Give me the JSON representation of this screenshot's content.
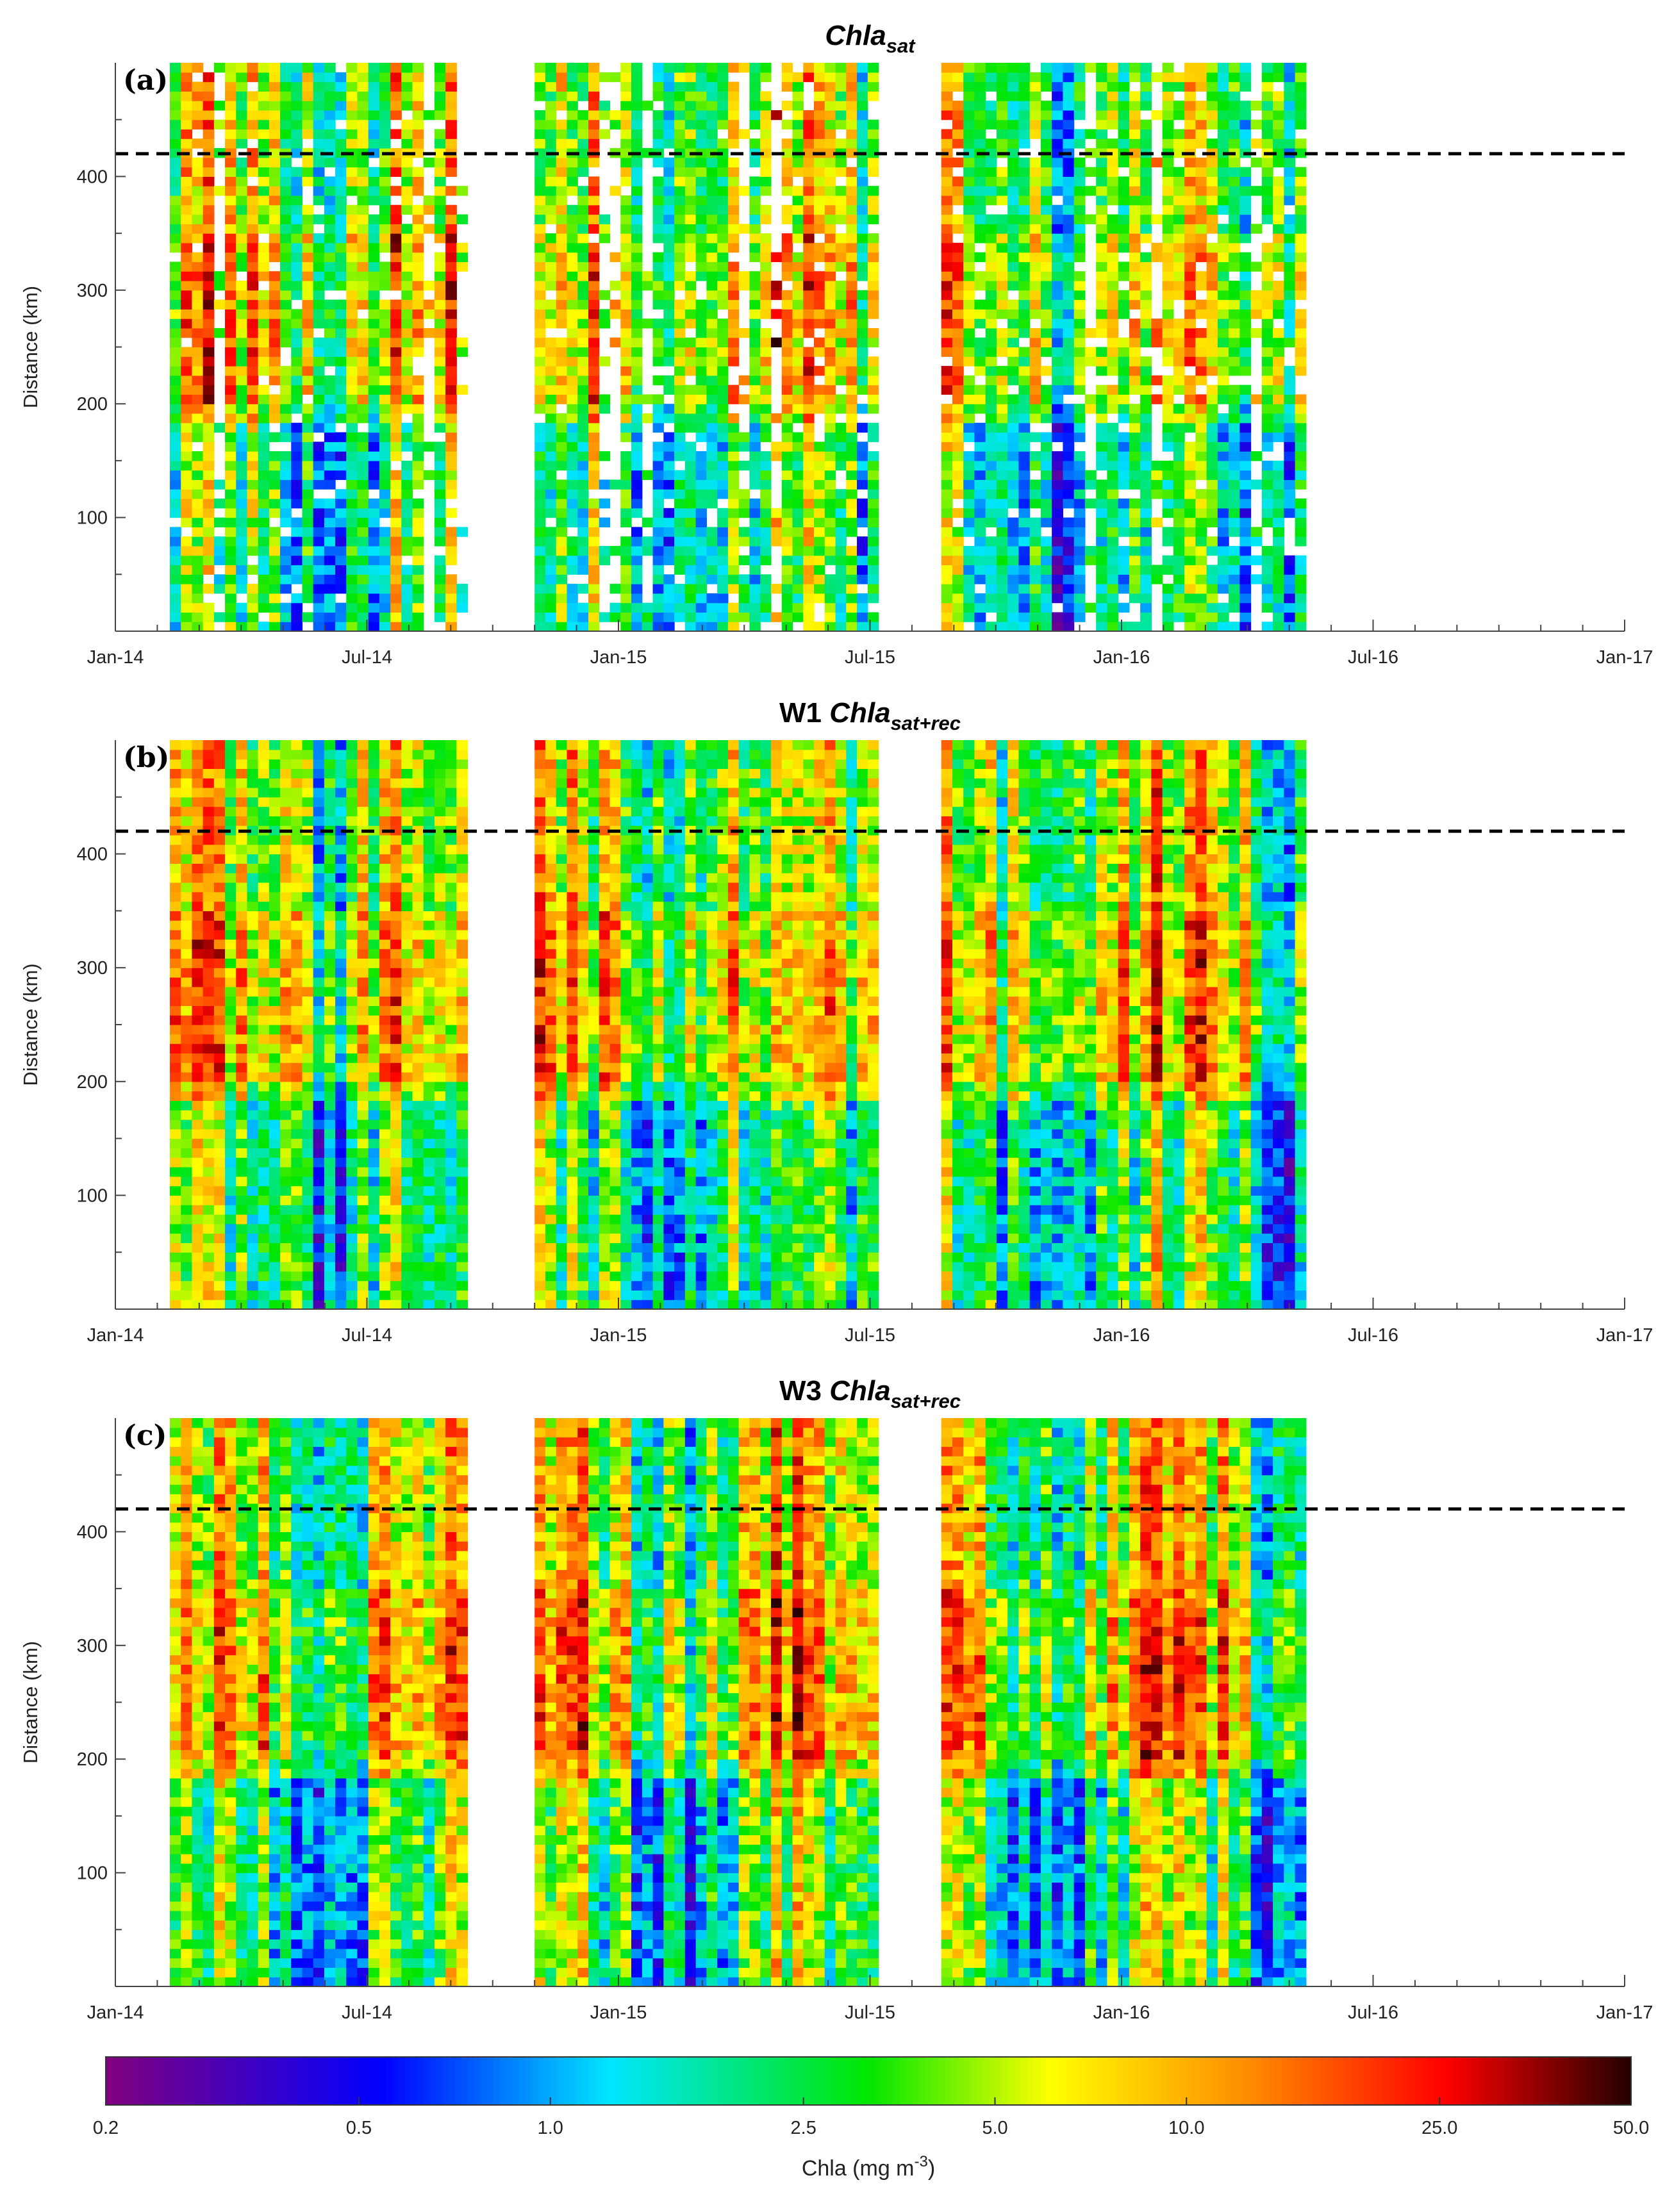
{
  "chart_data": [
    {
      "type": "heatmap",
      "panel_label": "(a)",
      "title_main": "Chla",
      "title_sub": "sat",
      "title_prefix": "",
      "ylabel": "Distance (km)",
      "xlabel": "",
      "x_ticks": [
        "Jan-14",
        "Jul-14",
        "Jan-15",
        "Jul-15",
        "Jan-16",
        "Jul-16",
        "Jan-17"
      ],
      "y_ticks": [
        100,
        200,
        300,
        400
      ],
      "ylim": [
        0,
        500
      ],
      "xlim_months": [
        0,
        36
      ],
      "boundary_km": 420,
      "coverage_months": [
        [
          1.3,
          8.4
        ],
        [
          10.0,
          18.2
        ],
        [
          19.7,
          28.4
        ]
      ],
      "gaps": true
    },
    {
      "type": "heatmap",
      "panel_label": "(b)",
      "title_main": "Chla",
      "title_sub": "sat+rec",
      "title_prefix": "W1",
      "ylabel": "Distance (km)",
      "xlabel": "",
      "x_ticks": [
        "Jan-14",
        "Jul-14",
        "Jan-15",
        "Jul-15",
        "Jan-16",
        "Jul-16",
        "Jan-17"
      ],
      "y_ticks": [
        100,
        200,
        300,
        400
      ],
      "ylim": [
        0,
        500
      ],
      "xlim_months": [
        0,
        36
      ],
      "boundary_km": 420,
      "coverage_months": [
        [
          1.3,
          8.4
        ],
        [
          10.0,
          18.2
        ],
        [
          19.7,
          28.4
        ]
      ],
      "gaps": false
    },
    {
      "type": "heatmap",
      "panel_label": "(c)",
      "title_main": "Chla",
      "title_sub": "sat+rec",
      "title_prefix": "W3",
      "ylabel": "Distance (km)",
      "xlabel": "",
      "x_ticks": [
        "Jan-14",
        "Jul-14",
        "Jan-15",
        "Jul-15",
        "Jan-16",
        "Jul-16",
        "Jan-17"
      ],
      "y_ticks": [
        100,
        200,
        300,
        400
      ],
      "ylim": [
        0,
        500
      ],
      "xlim_months": [
        0,
        36
      ],
      "boundary_km": 420,
      "coverage_months": [
        [
          1.3,
          8.4
        ],
        [
          10.0,
          18.2
        ],
        [
          19.7,
          28.4
        ]
      ],
      "gaps": false
    }
  ],
  "colorbar": {
    "label": "Chla (mg m",
    "label_exp": "-3",
    "label_end": ")",
    "ticks": [
      "0.2",
      "0.5",
      "1.0",
      "2.5",
      "5.0",
      "10.0",
      "25.0",
      "50.0"
    ],
    "tick_values": [
      0.2,
      0.5,
      1.0,
      2.5,
      5.0,
      10.0,
      25.0,
      50.0
    ],
    "scale": "log",
    "range": [
      0.2,
      50.0
    ],
    "colors": [
      "#880088",
      "#0000ff",
      "#00ffff",
      "#00ff00",
      "#ffff00",
      "#ff8800",
      "#ff0000",
      "#000000"
    ]
  }
}
